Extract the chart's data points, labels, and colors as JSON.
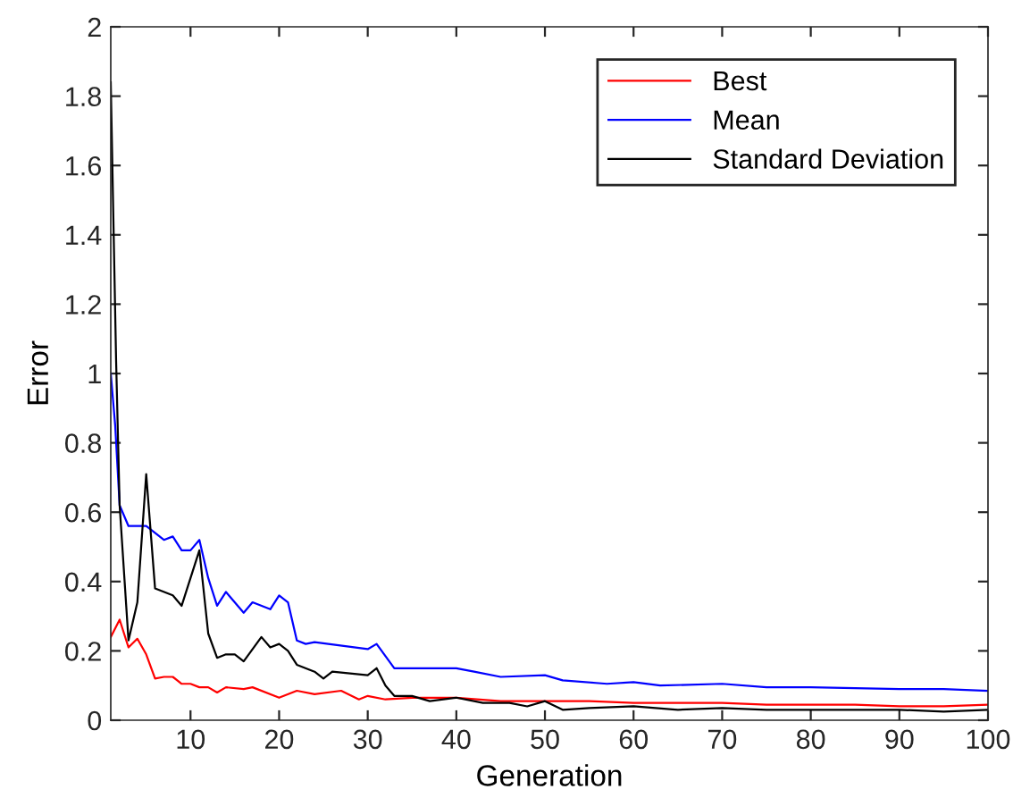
{
  "chart_data": {
    "type": "line",
    "xlabel": "Generation",
    "ylabel": "Error",
    "xlim": [
      1,
      100
    ],
    "ylim": [
      0,
      2
    ],
    "xticks": [
      10,
      20,
      30,
      40,
      50,
      60,
      70,
      80,
      90,
      100
    ],
    "yticks": [
      0,
      0.2,
      0.4,
      0.6,
      0.8,
      1,
      1.2,
      1.4,
      1.6,
      1.8,
      2
    ],
    "grid": false,
    "legend": "top right",
    "marker": "none",
    "line_style": "solid",
    "series": [
      {
        "name": "Best",
        "color": "#ff0000",
        "x": [
          1,
          2,
          3,
          4,
          5,
          6,
          7,
          8,
          9,
          10,
          11,
          12,
          13,
          14,
          16,
          17,
          20,
          22,
          24,
          27,
          29,
          30,
          32,
          35,
          40,
          45,
          50,
          55,
          60,
          65,
          70,
          75,
          80,
          85,
          90,
          95,
          100
        ],
        "values": [
          0.24,
          0.29,
          0.21,
          0.235,
          0.19,
          0.12,
          0.125,
          0.125,
          0.105,
          0.105,
          0.095,
          0.095,
          0.08,
          0.095,
          0.09,
          0.095,
          0.065,
          0.085,
          0.075,
          0.085,
          0.06,
          0.07,
          0.06,
          0.065,
          0.065,
          0.055,
          0.055,
          0.055,
          0.05,
          0.05,
          0.05,
          0.045,
          0.045,
          0.045,
          0.04,
          0.04,
          0.045
        ]
      },
      {
        "name": "Mean",
        "color": "#0000ff",
        "x": [
          1,
          1.5,
          2,
          3,
          5,
          7,
          8,
          9,
          10,
          11,
          12,
          13,
          14,
          16,
          17,
          19,
          20,
          21,
          22,
          23,
          24,
          30,
          31,
          33,
          36,
          40,
          42,
          45,
          50,
          52,
          57,
          60,
          63,
          70,
          75,
          80,
          90,
          95,
          100
        ],
        "values": [
          1.0,
          0.85,
          0.62,
          0.56,
          0.56,
          0.52,
          0.53,
          0.49,
          0.49,
          0.52,
          0.41,
          0.33,
          0.37,
          0.31,
          0.34,
          0.32,
          0.36,
          0.34,
          0.23,
          0.22,
          0.225,
          0.205,
          0.22,
          0.15,
          0.15,
          0.15,
          0.14,
          0.125,
          0.13,
          0.115,
          0.105,
          0.11,
          0.1,
          0.105,
          0.095,
          0.095,
          0.09,
          0.09,
          0.085
        ]
      },
      {
        "name": "Standard Deviation",
        "color": "#000000",
        "x": [
          1,
          1.3,
          1.6,
          2,
          3,
          4,
          5,
          6,
          8,
          9,
          11,
          12,
          13,
          14,
          15,
          16,
          18,
          19,
          20,
          21,
          22,
          24,
          25,
          26,
          30,
          31,
          32,
          33,
          35,
          37,
          40,
          43,
          46,
          48,
          50,
          52,
          55,
          60,
          65,
          70,
          75,
          80,
          85,
          90,
          95,
          100
        ],
        "values": [
          1.84,
          1.44,
          1.04,
          0.62,
          0.23,
          0.34,
          0.71,
          0.38,
          0.36,
          0.33,
          0.49,
          0.25,
          0.18,
          0.19,
          0.19,
          0.17,
          0.24,
          0.21,
          0.22,
          0.2,
          0.16,
          0.14,
          0.12,
          0.14,
          0.13,
          0.15,
          0.1,
          0.07,
          0.07,
          0.055,
          0.065,
          0.05,
          0.05,
          0.04,
          0.055,
          0.03,
          0.035,
          0.04,
          0.03,
          0.035,
          0.03,
          0.03,
          0.03,
          0.03,
          0.025,
          0.03
        ]
      }
    ]
  }
}
